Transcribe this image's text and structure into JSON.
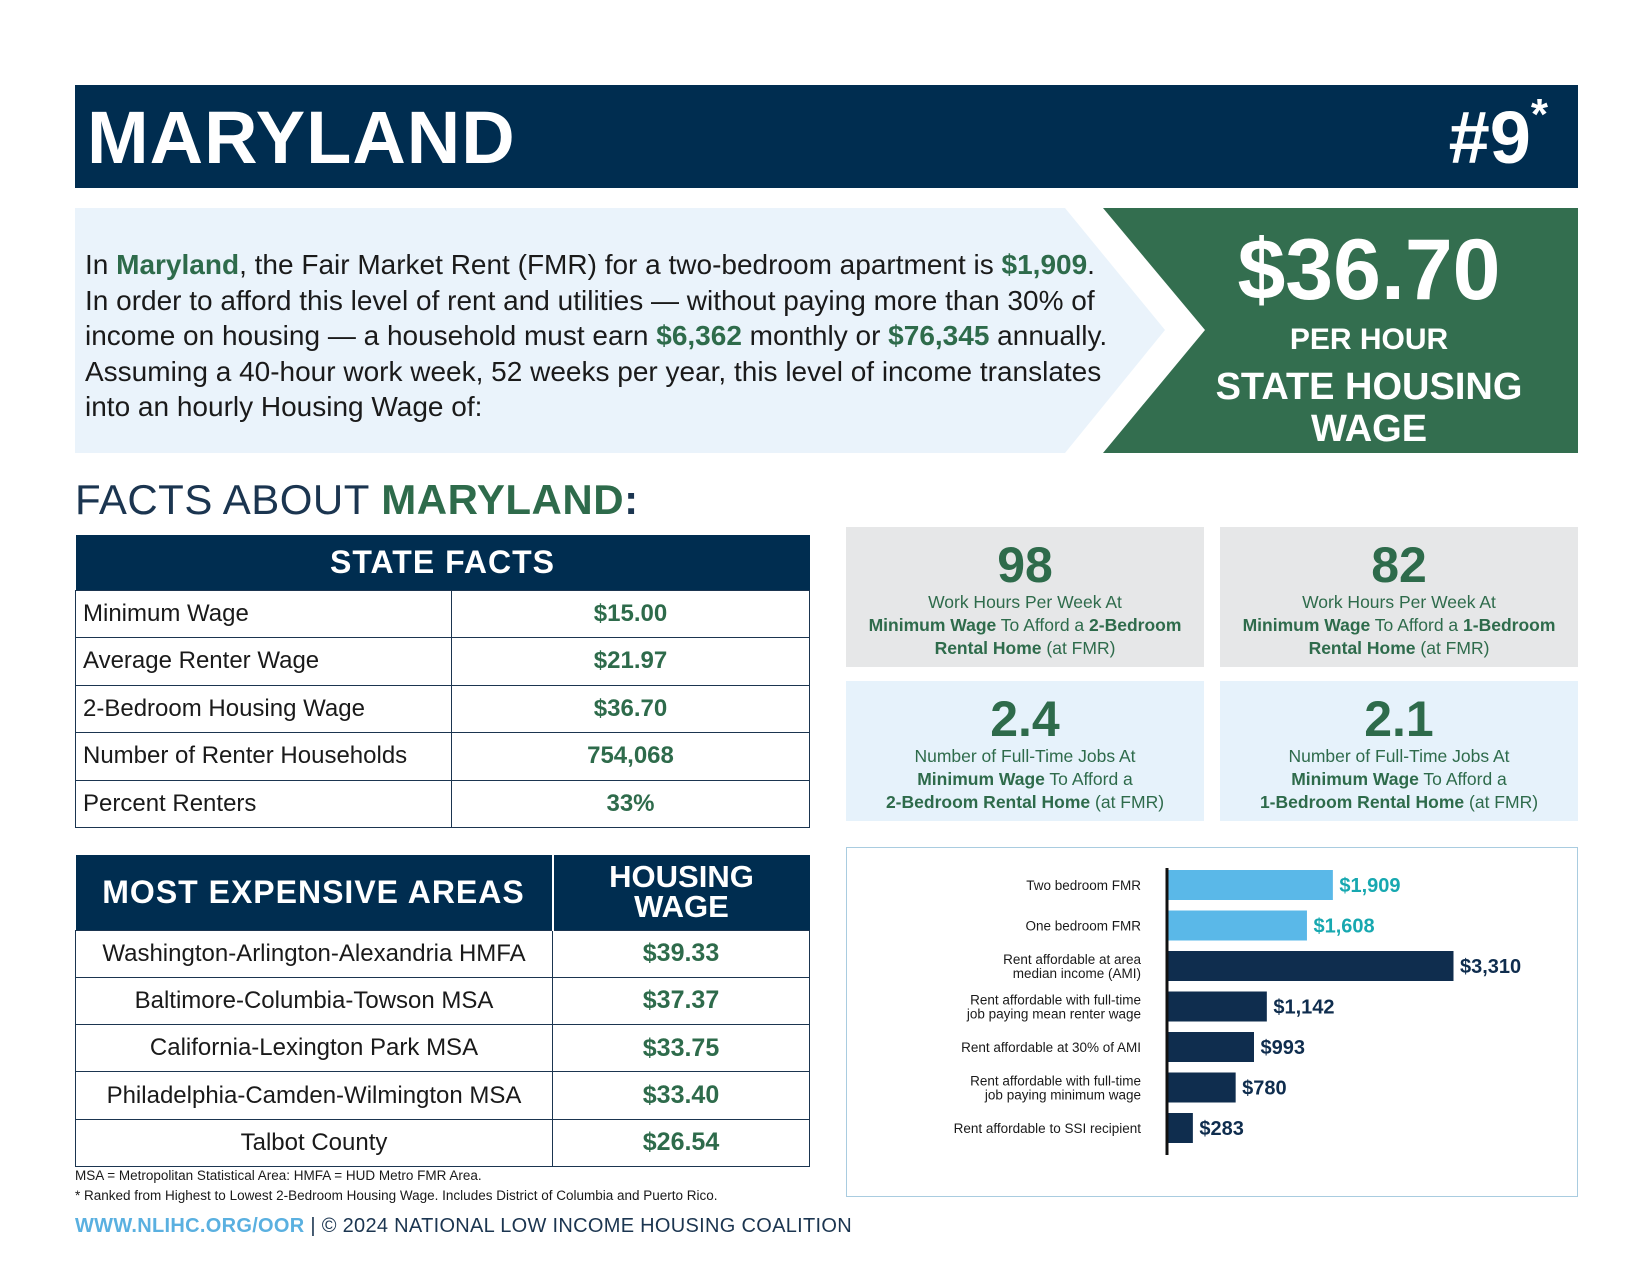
{
  "header": {
    "state": "MARYLAND",
    "rank": "#9",
    "rank_mark": "*"
  },
  "intro": {
    "p1": "In ",
    "state": "Maryland",
    "p2": ", the Fair Market Rent (FMR) for a two-bedroom apartment is ",
    "fmr": "$1,909",
    "p3": ". In order to afford this level of rent and utilities — without paying more than 30% of income on housing — a household must earn ",
    "monthly": "$6,362",
    "p4": " monthly or ",
    "annual": "$76,345",
    "p5": " annually. Assuming a 40-hour work week, 52 weeks per year, this level of income translates into an hourly Housing Wage of:"
  },
  "housing_wage": {
    "amount": "$36.70",
    "per": "PER HOUR",
    "label_line1": "STATE HOUSING",
    "label_line2": "WAGE"
  },
  "facts_title": {
    "prefix": "FACTS ABOUT ",
    "state": "MARYLAND",
    "suffix": ":"
  },
  "state_facts": {
    "header": "STATE FACTS",
    "rows": [
      {
        "label": "Minimum Wage",
        "value": "$15.00"
      },
      {
        "label": "Average Renter Wage",
        "value": "$21.97"
      },
      {
        "label": "2-Bedroom Housing Wage",
        "value": "$36.70"
      },
      {
        "label": "Number of Renter Households",
        "value": "754,068"
      },
      {
        "label": "Percent Renters",
        "value": "33%"
      }
    ]
  },
  "expensive_areas": {
    "header_area": "MOST EXPENSIVE AREAS",
    "header_wage_line1": "HOUSING",
    "header_wage_line2": "WAGE",
    "rows": [
      {
        "area": "Washington-Arlington-Alexandria HMFA",
        "wage": "$39.33"
      },
      {
        "area": "Baltimore-Columbia-Towson MSA",
        "wage": "$37.37"
      },
      {
        "area": "California-Lexington Park MSA",
        "wage": "$33.75"
      },
      {
        "area": "Philadelphia-Camden-Wilmington MSA",
        "wage": "$33.40"
      },
      {
        "area": "Talbot County",
        "wage": "$26.54"
      }
    ]
  },
  "stats": [
    {
      "num": "98",
      "line1": "Work Hours Per Week At",
      "b1": "Minimum Wage",
      "t1": " To Afford a ",
      "b2": "2-Bedroom",
      "b3": "Rental Home",
      "t2": " (at FMR)"
    },
    {
      "num": "82",
      "line1": "Work Hours Per Week At",
      "b1": "Minimum Wage",
      "t1": " To Afford a ",
      "b2": "1-Bedroom",
      "b3": "Rental Home",
      "t2": " (at FMR)"
    },
    {
      "num": "2.4",
      "line1": "Number of Full-Time Jobs At",
      "b1": "Minimum Wage",
      "t1": " To Afford a",
      "b2": "2-Bedroom Rental Home",
      "t2": " (at FMR)"
    },
    {
      "num": "2.1",
      "line1": "Number of Full-Time Jobs At",
      "b1": "Minimum Wage",
      "t1": " To Afford a",
      "b2": "1-Bedroom Rental Home",
      "t2": " (at FMR)"
    }
  ],
  "chart_data": {
    "type": "bar",
    "orientation": "horizontal",
    "categories": [
      [
        "Two bedroom FMR"
      ],
      [
        "One bedroom FMR"
      ],
      [
        "Rent affordable at area",
        "median income (AMI)"
      ],
      [
        "Rent affordable with full-time",
        "job paying mean renter wage"
      ],
      [
        "Rent affordable at 30% of AMI"
      ],
      [
        "Rent affordable with full-time",
        "job paying minimum wage"
      ],
      [
        "Rent affordable to SSI recipient"
      ]
    ],
    "values": [
      1909,
      1608,
      3310,
      1142,
      993,
      780,
      283
    ],
    "labels": [
      "$1,909",
      "$1,608",
      "$3,310",
      "$1,142",
      "$993",
      "$780",
      "$283"
    ],
    "bar_colors": [
      "#5ab8e8",
      "#5ab8e8",
      "#0f2d4e",
      "#0f2d4e",
      "#0f2d4e",
      "#0f2d4e",
      "#0f2d4e"
    ],
    "label_colors": [
      "#17a8b0",
      "#17a8b0",
      "#0f2d4e",
      "#0f2d4e",
      "#0f2d4e",
      "#0f2d4e",
      "#0f2d4e"
    ],
    "xlim": [
      0,
      3310
    ]
  },
  "footer": {
    "note1": "MSA = Metropolitan Statistical Area: HMFA = HUD Metro FMR Area.",
    "note2": "* Ranked from Highest to Lowest 2-Bedroom Housing Wage. Includes District of Columbia and Puerto Rico.",
    "url": "WWW.NLIHC.ORG/OOR",
    "copyright": " | © 2024 NATIONAL LOW INCOME HOUSING COALITION"
  },
  "colors": {
    "navy": "#002d50",
    "green": "#2e6b4b",
    "light_blue": "#eaf3fb",
    "gray": "#e6e7e8"
  }
}
